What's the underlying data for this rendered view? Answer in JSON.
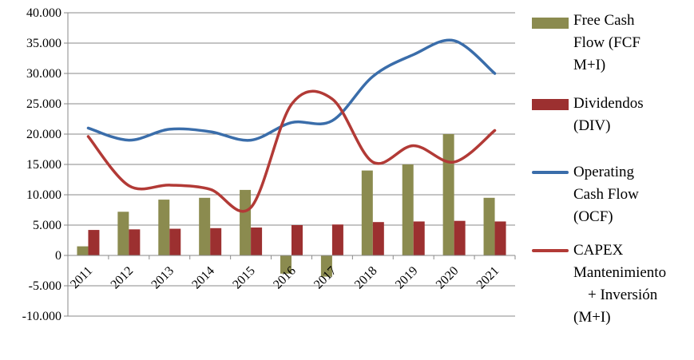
{
  "chart_data": {
    "type": "bar",
    "categories": [
      "2011",
      "2012",
      "2013",
      "2014",
      "2015",
      "2016",
      "2017",
      "2018",
      "2019",
      "2020",
      "2021"
    ],
    "series": [
      {
        "name": "Free Cash Flow (FCF M+I)",
        "kind": "bar",
        "color": "#8B8B4F",
        "values": [
          1500,
          7200,
          9200,
          9500,
          10800,
          -3000,
          -3500,
          14000,
          15000,
          20000,
          9500
        ]
      },
      {
        "name": "Dividendos (DIV)",
        "kind": "bar",
        "color": "#9C3030",
        "values": [
          4200,
          4300,
          4400,
          4500,
          4600,
          5000,
          5100,
          5500,
          5600,
          5700,
          5600
        ]
      },
      {
        "name": "Operating Cash Flow (OCF)",
        "kind": "line",
        "color": "#3A6DAA",
        "values": [
          21000,
          19000,
          20800,
          20400,
          19000,
          21900,
          22200,
          29500,
          33100,
          35400,
          30000
        ]
      },
      {
        "name": "CAPEX Mantenimiento + Inversión (M+I)",
        "kind": "line",
        "color": "#B23A36",
        "values": [
          19600,
          11500,
          11600,
          10900,
          7900,
          24900,
          25800,
          15400,
          18100,
          15400,
          20600
        ]
      }
    ],
    "ylim": [
      -10000,
      40000
    ],
    "yticks": [
      -10000,
      -5000,
      0,
      5000,
      10000,
      15000,
      20000,
      25000,
      30000,
      35000,
      40000
    ],
    "ytick_labels": [
      "-10.000",
      "-5.000",
      "0",
      "5.000",
      "10.000",
      "15.000",
      "20.000",
      "25.000",
      "30.000",
      "35.000",
      "40.000"
    ],
    "grid": "horizontal",
    "legend_position": "right",
    "title": "",
    "xlabel": "",
    "ylabel": ""
  },
  "legend": {
    "items": [
      {
        "lines": [
          "Free Cash",
          "Flow (FCF",
          "M+I)"
        ],
        "swatch": "bar",
        "color": "#8B8B4F"
      },
      {
        "lines": [
          "Dividendos",
          "(DIV)"
        ],
        "swatch": "bar",
        "color": "#9C3030"
      },
      {
        "lines": [
          "Operating",
          "Cash Flow",
          "(OCF)"
        ],
        "swatch": "line",
        "color": "#3A6DAA"
      },
      {
        "lines": [
          "CAPEX",
          "Mantenimiento",
          "+ Inversión",
          "(M+I)"
        ],
        "swatch": "line",
        "color": "#B23A36"
      }
    ]
  }
}
